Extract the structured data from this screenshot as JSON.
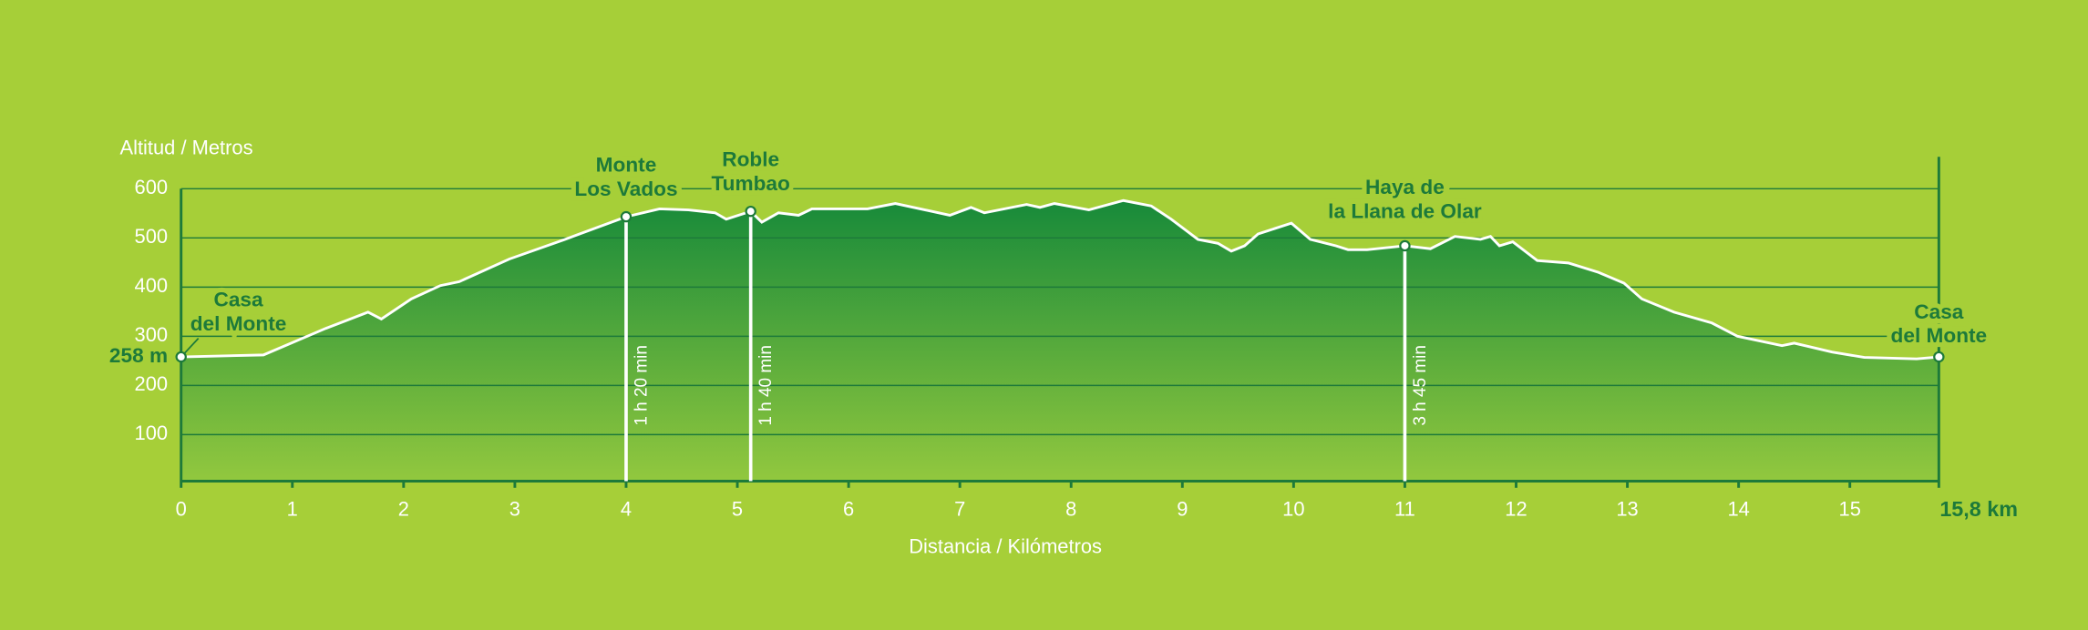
{
  "chart_data": {
    "type": "elevation-profile",
    "y_axis_label": "Altitud / Metros",
    "x_axis_label": "Distancia / Kilómetros",
    "xlim": [
      0,
      15.8
    ],
    "ylim": [
      0,
      600
    ],
    "xticks": [
      0,
      1,
      2,
      3,
      4,
      5,
      6,
      7,
      8,
      9,
      10,
      11,
      12,
      13,
      14,
      15,
      {
        "value": 15.8,
        "label": "15,8 km"
      }
    ],
    "yticks": [
      100,
      200,
      300,
      400,
      500,
      600
    ],
    "start_elevation": {
      "value": 258,
      "label": "258 m"
    },
    "grid": true,
    "line_color": "#ffffff",
    "area_top_color": "#178a3a",
    "area_bottom_color": "#92c83e",
    "x": [
      0,
      0.74,
      1.3,
      1.68,
      1.8,
      2.07,
      2.33,
      2.5,
      2.95,
      3.45,
      4.0,
      4.3,
      4.56,
      4.8,
      4.9,
      5.12,
      5.22,
      5.37,
      5.55,
      5.67,
      5.75,
      6.17,
      6.42,
      6.91,
      7.1,
      7.22,
      7.6,
      7.72,
      7.85,
      8.16,
      8.47,
      8.72,
      8.9,
      9.14,
      9.32,
      9.44,
      9.56,
      9.68,
      9.98,
      10.15,
      10.38,
      10.49,
      10.66,
      11.0,
      11.23,
      11.45,
      11.68,
      11.77,
      11.85,
      11.97,
      12.19,
      12.47,
      12.74,
      12.97,
      13.13,
      13.42,
      13.76,
      13.99,
      14.39,
      14.5,
      14.84,
      15.13,
      15.6,
      15.8
    ],
    "values": [
      258,
      262,
      316,
      349,
      335,
      376,
      403,
      411,
      457,
      497,
      543,
      559,
      557,
      551,
      538,
      554,
      532,
      551,
      546,
      559,
      559,
      559,
      570,
      546,
      562,
      551,
      568,
      562,
      570,
      557,
      576,
      565,
      538,
      497,
      489,
      473,
      484,
      508,
      530,
      497,
      484,
      476,
      476,
      484,
      478,
      503,
      497,
      503,
      484,
      492,
      454,
      449,
      430,
      408,
      376,
      349,
      327,
      300,
      281,
      286,
      268,
      257,
      254,
      258
    ],
    "waypoints": [
      {
        "name": [
          "Casa",
          "del Monte"
        ],
        "km": 0,
        "elevation": 258
      },
      {
        "name": [
          "Monte",
          "Los Vados"
        ],
        "km": 4.0,
        "elevation": 543,
        "time": "1 h 20 min"
      },
      {
        "name": [
          "Roble",
          "Tumbao"
        ],
        "km": 5.12,
        "elevation": 554,
        "time": "1 h 40 min"
      },
      {
        "name": [
          "Haya de",
          "la Llana de Olar"
        ],
        "km": 11.0,
        "elevation": 484,
        "time": "3 h 45 min"
      },
      {
        "name": [
          "Casa",
          "del Monte"
        ],
        "km": 15.8,
        "elevation": 258
      }
    ]
  }
}
